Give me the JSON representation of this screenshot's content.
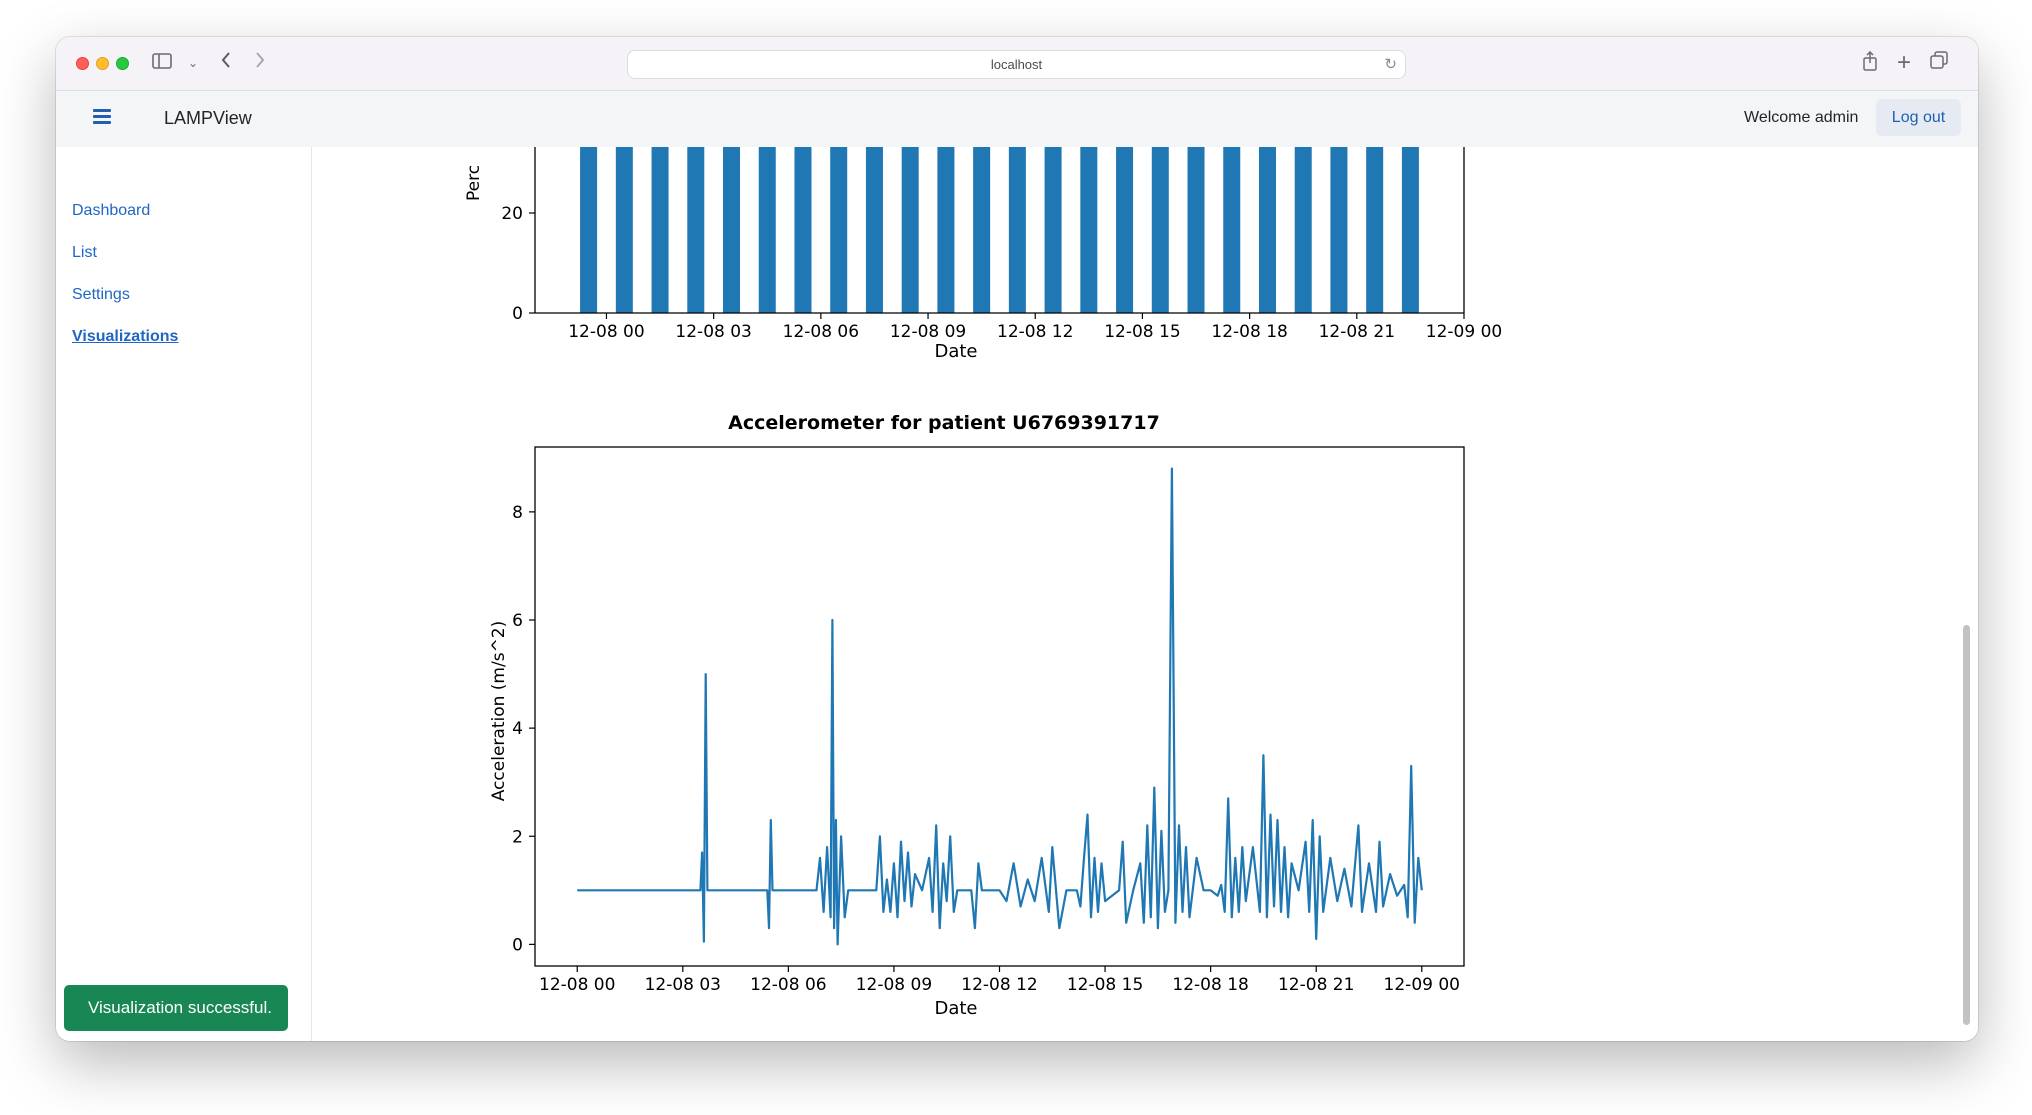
{
  "browser": {
    "url": "localhost",
    "icons": [
      "sidebar-icon",
      "chevron-down-icon",
      "back-icon",
      "forward-icon",
      "reload-icon",
      "share-icon",
      "new-tab-icon",
      "tabs-overview-icon"
    ]
  },
  "navbar": {
    "brand": "LAMPView",
    "welcome": "Welcome admin",
    "logout": "Log out"
  },
  "sidebar": {
    "items": [
      {
        "label": "Dashboard",
        "active": false
      },
      {
        "label": "List",
        "active": false
      },
      {
        "label": "Settings",
        "active": false
      },
      {
        "label": "Visualizations",
        "active": true
      }
    ]
  },
  "toast": {
    "message": "Visualization successful."
  },
  "colors": {
    "series": "#1f77b4",
    "link": "#1f66c4",
    "toast": "#198754"
  },
  "chart_data": [
    {
      "type": "bar",
      "title": "",
      "xlabel": "Date",
      "ylabel": "Perc",
      "x_ticks": [
        "12-08 00",
        "12-08 03",
        "12-08 06",
        "12-08 09",
        "12-08 12",
        "12-08 15",
        "12-08 18",
        "12-08 21",
        "12-09 00"
      ],
      "y_ticks": [
        "0",
        "20"
      ],
      "x_range": [
        "2023-12-07T22:00",
        "2023-12-09T00:00"
      ],
      "bar_times": [
        "12-07 23:00",
        "12-08 00:00",
        "12-08 01:00",
        "12-08 02:00",
        "12-08 03:00",
        "12-08 04:00",
        "12-08 05:00",
        "12-08 06:00",
        "12-08 07:00",
        "12-08 08:00",
        "12-08 09:00",
        "12-08 10:00",
        "12-08 11:00",
        "12-08 12:00",
        "12-08 13:00",
        "12-08 14:00",
        "12-08 15:00",
        "12-08 16:00",
        "12-08 17:00",
        "12-08 18:00",
        "12-08 19:00",
        "12-08 20:00",
        "12-08 21:00",
        "12-08 22:00"
      ],
      "note_partial": "top of chart is scrolled out of view; visible bars all exceed 26"
    },
    {
      "type": "line",
      "title": "Accelerometer for patient U6769391717",
      "xlabel": "Date",
      "ylabel": "Acceleration (m/s^2)",
      "x_ticks": [
        "12-08 00",
        "12-08 03",
        "12-08 06",
        "12-08 09",
        "12-08 12",
        "12-08 15",
        "12-08 18",
        "12-08 21",
        "12-09 00"
      ],
      "y_ticks": [
        "0",
        "2",
        "4",
        "6",
        "8"
      ],
      "ylim": [
        -0.4,
        9.2
      ],
      "x_range_hours": [
        -1.2,
        25.2
      ],
      "baseline": 1.0,
      "series": [
        {
          "points": [
            [
              0.0,
              1.0
            ],
            [
              3.0,
              1.0
            ],
            [
              3.5,
              1.0
            ],
            [
              3.55,
              1.7
            ],
            [
              3.6,
              0.05
            ],
            [
              3.65,
              5.0
            ],
            [
              3.7,
              1.0
            ],
            [
              5.4,
              1.0
            ],
            [
              5.45,
              0.3
            ],
            [
              5.5,
              2.3
            ],
            [
              5.55,
              1.0
            ],
            [
              6.8,
              1.0
            ],
            [
              6.9,
              1.6
            ],
            [
              7.0,
              0.6
            ],
            [
              7.1,
              1.8
            ],
            [
              7.2,
              0.5
            ],
            [
              7.25,
              6.0
            ],
            [
              7.3,
              0.3
            ],
            [
              7.35,
              2.3
            ],
            [
              7.4,
              0.0
            ],
            [
              7.5,
              2.0
            ],
            [
              7.6,
              0.5
            ],
            [
              7.7,
              1.0
            ],
            [
              8.5,
              1.0
            ],
            [
              8.6,
              2.0
            ],
            [
              8.7,
              0.6
            ],
            [
              8.8,
              1.2
            ],
            [
              8.9,
              0.6
            ],
            [
              9.0,
              1.5
            ],
            [
              9.1,
              0.5
            ],
            [
              9.2,
              1.9
            ],
            [
              9.3,
              0.8
            ],
            [
              9.4,
              1.7
            ],
            [
              9.5,
              0.7
            ],
            [
              9.6,
              1.3
            ],
            [
              9.8,
              1.0
            ],
            [
              10.0,
              1.6
            ],
            [
              10.1,
              0.6
            ],
            [
              10.2,
              2.2
            ],
            [
              10.3,
              0.3
            ],
            [
              10.4,
              1.5
            ],
            [
              10.5,
              0.8
            ],
            [
              10.6,
              2.0
            ],
            [
              10.7,
              0.6
            ],
            [
              10.8,
              1.0
            ],
            [
              11.2,
              1.0
            ],
            [
              11.3,
              0.3
            ],
            [
              11.4,
              1.5
            ],
            [
              11.5,
              1.0
            ],
            [
              12.0,
              1.0
            ],
            [
              12.2,
              0.8
            ],
            [
              12.4,
              1.5
            ],
            [
              12.6,
              0.7
            ],
            [
              12.8,
              1.2
            ],
            [
              13.0,
              0.8
            ],
            [
              13.2,
              1.6
            ],
            [
              13.4,
              0.6
            ],
            [
              13.5,
              1.8
            ],
            [
              13.7,
              0.3
            ],
            [
              13.9,
              1.0
            ],
            [
              14.2,
              1.0
            ],
            [
              14.3,
              0.7
            ],
            [
              14.4,
              1.6
            ],
            [
              14.5,
              2.4
            ],
            [
              14.6,
              0.5
            ],
            [
              14.7,
              1.6
            ],
            [
              14.8,
              0.6
            ],
            [
              14.9,
              1.5
            ],
            [
              15.0,
              0.8
            ],
            [
              15.4,
              1.0
            ],
            [
              15.5,
              1.9
            ],
            [
              15.6,
              0.4
            ],
            [
              15.8,
              1.0
            ],
            [
              16.0,
              1.5
            ],
            [
              16.1,
              0.4
            ],
            [
              16.2,
              2.2
            ],
            [
              16.3,
              0.5
            ],
            [
              16.4,
              2.9
            ],
            [
              16.5,
              0.3
            ],
            [
              16.6,
              2.1
            ],
            [
              16.7,
              0.6
            ],
            [
              16.8,
              1.0
            ],
            [
              16.9,
              8.8
            ],
            [
              17.0,
              0.4
            ],
            [
              17.1,
              2.2
            ],
            [
              17.2,
              0.6
            ],
            [
              17.3,
              1.8
            ],
            [
              17.4,
              0.5
            ],
            [
              17.6,
              1.6
            ],
            [
              17.8,
              1.0
            ],
            [
              18.0,
              1.0
            ],
            [
              18.2,
              0.9
            ],
            [
              18.3,
              1.1
            ],
            [
              18.4,
              0.6
            ],
            [
              18.5,
              2.7
            ],
            [
              18.6,
              0.5
            ],
            [
              18.7,
              1.6
            ],
            [
              18.8,
              0.6
            ],
            [
              18.9,
              1.8
            ],
            [
              19.0,
              0.8
            ],
            [
              19.2,
              1.8
            ],
            [
              19.4,
              0.6
            ],
            [
              19.5,
              3.5
            ],
            [
              19.6,
              0.5
            ],
            [
              19.7,
              2.4
            ],
            [
              19.8,
              0.7
            ],
            [
              19.9,
              2.3
            ],
            [
              20.0,
              0.6
            ],
            [
              20.1,
              1.8
            ],
            [
              20.2,
              0.5
            ],
            [
              20.3,
              1.5
            ],
            [
              20.5,
              1.0
            ],
            [
              20.7,
              1.9
            ],
            [
              20.8,
              0.6
            ],
            [
              20.9,
              2.3
            ],
            [
              21.0,
              0.1
            ],
            [
              21.1,
              2.0
            ],
            [
              21.2,
              0.6
            ],
            [
              21.4,
              1.6
            ],
            [
              21.6,
              0.8
            ],
            [
              21.8,
              1.4
            ],
            [
              22.0,
              0.7
            ],
            [
              22.2,
              2.2
            ],
            [
              22.3,
              0.6
            ],
            [
              22.5,
              1.5
            ],
            [
              22.7,
              0.6
            ],
            [
              22.8,
              1.9
            ],
            [
              22.9,
              0.7
            ],
            [
              23.1,
              1.3
            ],
            [
              23.3,
              0.9
            ],
            [
              23.5,
              1.1
            ],
            [
              23.6,
              0.5
            ],
            [
              23.7,
              3.3
            ],
            [
              23.8,
              0.4
            ],
            [
              23.9,
              1.6
            ],
            [
              24.0,
              1.0
            ]
          ]
        }
      ]
    }
  ]
}
